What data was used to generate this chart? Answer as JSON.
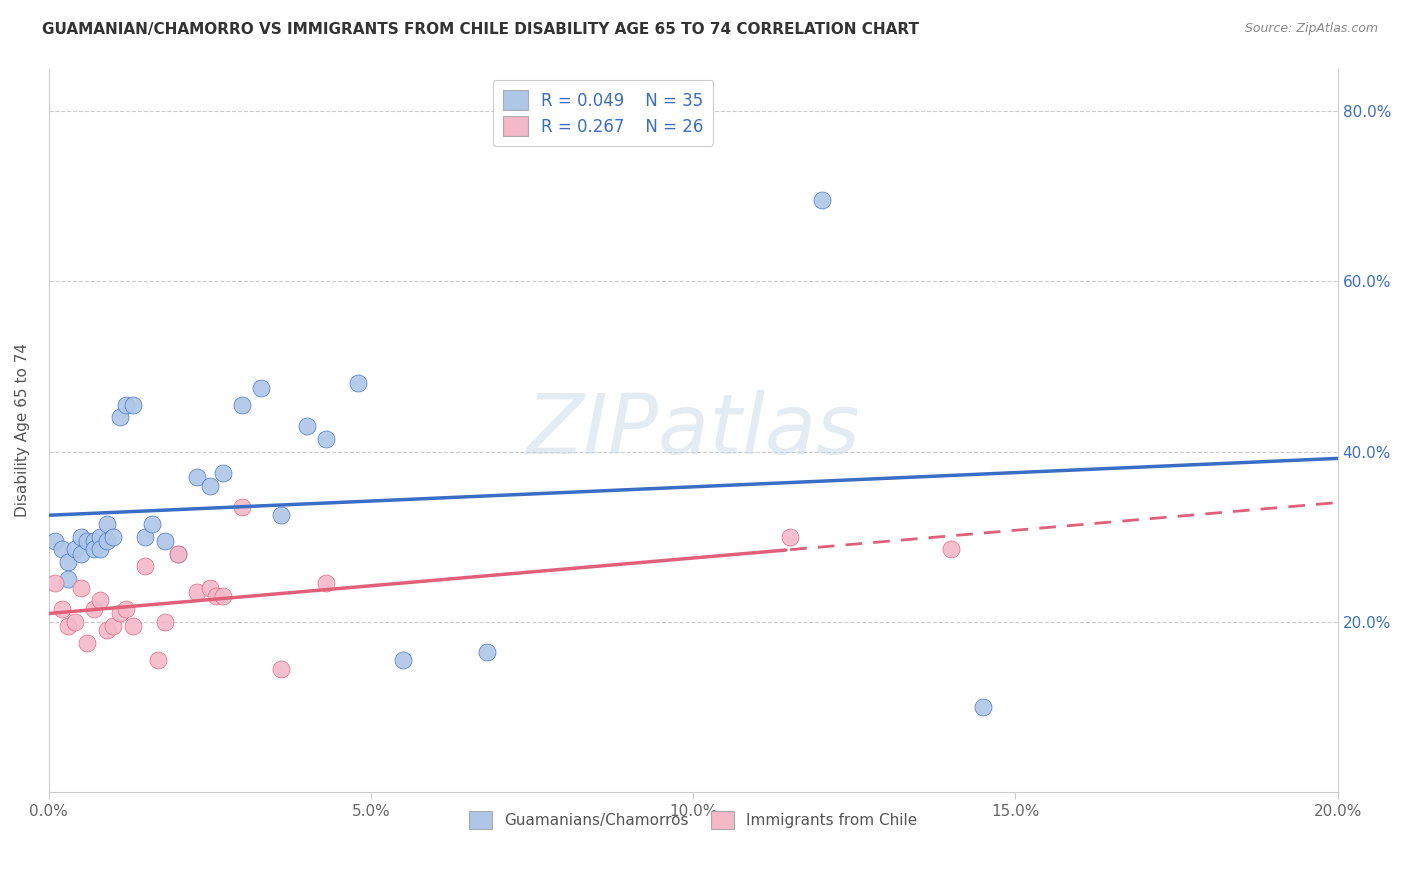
{
  "title": "GUAMANIAN/CHAMORRO VS IMMIGRANTS FROM CHILE DISABILITY AGE 65 TO 74 CORRELATION CHART",
  "source": "Source: ZipAtlas.com",
  "ylabel": "Disability Age 65 to 74",
  "xlim": [
    0.0,
    0.2
  ],
  "ylim": [
    0.0,
    0.85
  ],
  "xtick_labels": [
    "0.0%",
    "",
    "5.0%",
    "",
    "10.0%",
    "",
    "15.0%",
    "",
    "20.0%"
  ],
  "xtick_vals": [
    0.0,
    0.025,
    0.05,
    0.075,
    0.1,
    0.125,
    0.15,
    0.175,
    0.2
  ],
  "ytick_labels": [
    "20.0%",
    "40.0%",
    "60.0%",
    "80.0%"
  ],
  "ytick_vals": [
    0.2,
    0.4,
    0.6,
    0.8
  ],
  "blue_R": 0.049,
  "blue_N": 35,
  "pink_R": 0.267,
  "pink_N": 26,
  "blue_color": "#AEC6E8",
  "pink_color": "#F4B8C8",
  "blue_line_color": "#3A6DC4",
  "pink_line_color": "#E0607A",
  "watermark": "ZIPatlas",
  "legend_label_blue": "Guamanians/Chamorros",
  "legend_label_pink": "Immigrants from Chile",
  "blue_scatter_x": [
    0.001,
    0.002,
    0.003,
    0.003,
    0.004,
    0.005,
    0.005,
    0.006,
    0.007,
    0.007,
    0.008,
    0.008,
    0.009,
    0.009,
    0.01,
    0.011,
    0.012,
    0.013,
    0.015,
    0.016,
    0.018,
    0.02,
    0.023,
    0.025,
    0.027,
    0.03,
    0.033,
    0.036,
    0.04,
    0.043,
    0.048,
    0.055,
    0.068,
    0.12,
    0.145
  ],
  "blue_scatter_y": [
    0.295,
    0.285,
    0.27,
    0.25,
    0.285,
    0.3,
    0.28,
    0.295,
    0.295,
    0.285,
    0.3,
    0.285,
    0.295,
    0.315,
    0.3,
    0.44,
    0.455,
    0.455,
    0.3,
    0.315,
    0.295,
    0.28,
    0.37,
    0.36,
    0.375,
    0.455,
    0.475,
    0.325,
    0.43,
    0.415,
    0.48,
    0.155,
    0.165,
    0.695,
    0.1
  ],
  "pink_scatter_x": [
    0.001,
    0.002,
    0.003,
    0.004,
    0.005,
    0.006,
    0.007,
    0.008,
    0.009,
    0.01,
    0.011,
    0.012,
    0.013,
    0.015,
    0.017,
    0.018,
    0.02,
    0.023,
    0.025,
    0.026,
    0.027,
    0.03,
    0.036,
    0.043,
    0.115,
    0.14
  ],
  "pink_scatter_y": [
    0.245,
    0.215,
    0.195,
    0.2,
    0.24,
    0.175,
    0.215,
    0.225,
    0.19,
    0.195,
    0.21,
    0.215,
    0.195,
    0.265,
    0.155,
    0.2,
    0.28,
    0.235,
    0.24,
    0.23,
    0.23,
    0.335,
    0.145,
    0.245,
    0.3,
    0.285
  ]
}
